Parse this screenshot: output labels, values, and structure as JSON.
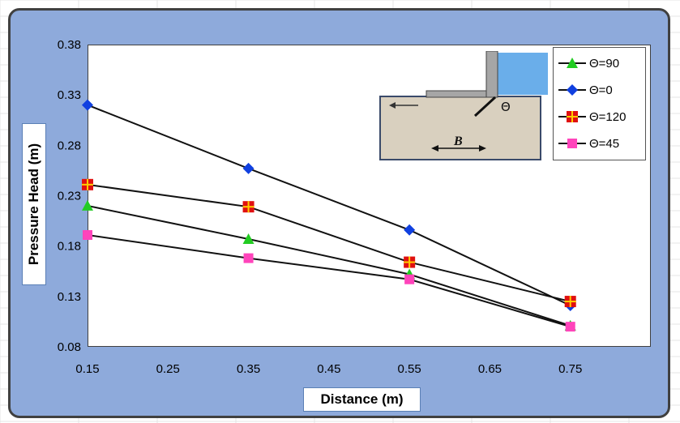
{
  "chart_data": {
    "type": "line",
    "xlabel": "Distance (m)",
    "ylabel": "Pressure Head (m)",
    "xlim": [
      0.15,
      0.85
    ],
    "ylim": [
      0.08,
      0.38
    ],
    "x_ticks": [
      "0.15",
      "0.25",
      "0.35",
      "0.45",
      "0.55",
      "0.65",
      "0.75"
    ],
    "y_ticks": [
      "0.38",
      "0.33",
      "0.28",
      "0.23",
      "0.18",
      "0.13",
      "0.08"
    ],
    "x": [
      0.15,
      0.35,
      0.55,
      0.75
    ],
    "series": [
      {
        "name": "Θ=90",
        "values": [
          0.22,
          0.187,
          0.152,
          0.101
        ],
        "color": "#22cc22",
        "marker": "triangle"
      },
      {
        "name": "Θ=0",
        "values": [
          0.32,
          0.257,
          0.196,
          0.121
        ],
        "color": "#1040e0",
        "marker": "diamond"
      },
      {
        "name": "Θ=120",
        "values": [
          0.241,
          0.219,
          0.164,
          0.125
        ],
        "color": "#e01010",
        "marker": "square-cross"
      },
      {
        "name": "Θ=45",
        "values": [
          0.191,
          0.168,
          0.147,
          0.1
        ],
        "color": "#ff44bb",
        "marker": "square"
      }
    ],
    "legend_position": "top-right",
    "grid": false
  },
  "inset": {
    "label": "B",
    "theta_symbol": "Θ",
    "colors": {
      "soil": "#d9d0bf",
      "water": "#6aaeea",
      "wall": "#a6a6a6"
    }
  },
  "colors": {
    "frame_background": "#8eaadb",
    "plot_background": "#ffffff"
  }
}
